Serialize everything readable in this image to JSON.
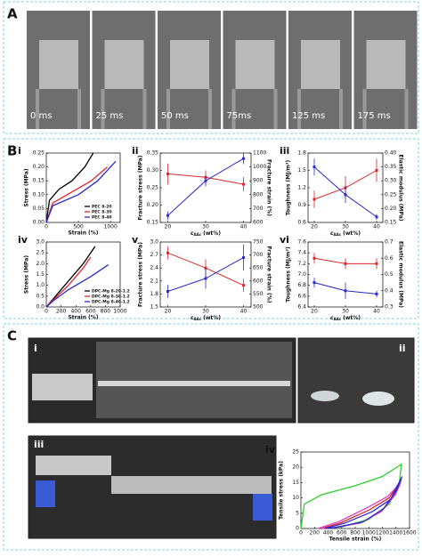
{
  "panels": {
    "a": "A",
    "b": "B",
    "c": "C"
  },
  "frames": [
    "0 ms",
    "25 ms",
    "50 ms",
    "75ms",
    "125 ms",
    "175 ms"
  ],
  "photo_labels": [
    "i",
    "ii",
    "iii"
  ],
  "chart_data": [
    {
      "type": "line",
      "panel_label": "i",
      "xlabel": "Strain (%)",
      "ylabel": "Stress (MPa)",
      "xlim": [
        0,
        1150
      ],
      "xticks": [
        0,
        500,
        1000
      ],
      "ylim": [
        0,
        0.25
      ],
      "yticks": [
        {
          "value": 0,
          "label": "0.00"
        },
        0.05,
        {
          "value": 0.1,
          "label": "0.10"
        },
        0.15,
        {
          "value": 0.2,
          "label": "0.20"
        },
        0.25
      ],
      "legend": "lower right",
      "series": [
        {
          "name": "PEC 8-20",
          "color": "#000000",
          "x": [
            0,
            50,
            200,
            400,
            600,
            730
          ],
          "values": [
            0,
            0.08,
            0.12,
            0.15,
            0.2,
            0.25
          ]
        },
        {
          "name": "PEC 8-30",
          "color": "#e0262b",
          "x": [
            0,
            100,
            400,
            700,
            950
          ],
          "values": [
            0,
            0.07,
            0.11,
            0.15,
            0.2
          ]
        },
        {
          "name": "PEC 8-40",
          "color": "#2a2ad0",
          "x": [
            0,
            100,
            500,
            800,
            1080
          ],
          "values": [
            0,
            0.06,
            0.1,
            0.15,
            0.22
          ]
        }
      ]
    },
    {
      "type": "dual",
      "panel_label": "ii",
      "xlabel_symbol": "c",
      "xlabel_subscript": "AAc",
      "xlabel_unit": "(wt%)",
      "ylabel": "Fracture stress (MPa)",
      "y2label": "Fracture strain (%)",
      "x": [
        20,
        30,
        40
      ],
      "xlim": [
        18,
        42
      ],
      "xticks": [
        20,
        30,
        40
      ],
      "ylim": [
        0.15,
        0.35
      ],
      "yticks": [
        0.15,
        {
          "value": 0.2,
          "label": "0.20"
        },
        0.25,
        {
          "value": 0.3,
          "label": "0.30"
        },
        0.35
      ],
      "y2lim": [
        600,
        1100
      ],
      "y2ticks": [
        600,
        700,
        800,
        900,
        1000,
        1100
      ],
      "series": [
        {
          "color": "#e0262b",
          "values": [
            0.29,
            0.28,
            0.26
          ],
          "errors": [
            0.03,
            0.02,
            0.02
          ]
        },
        {
          "color": "#2a2ad0",
          "axis": "y2",
          "values": [
            650,
            900,
            1060
          ],
          "errors": [
            30,
            40,
            40
          ]
        }
      ]
    },
    {
      "type": "dual",
      "panel_label": "iii",
      "xlabel_symbol": "c",
      "xlabel_subscript": "AAc",
      "xlabel_unit": "(wt%)",
      "ylabel": "Toughness (MJ/m³)",
      "y2label": "Elastic modulus (MPa)",
      "x": [
        20,
        30,
        40
      ],
      "xlim": [
        18,
        42
      ],
      "xticks": [
        20,
        30,
        40
      ],
      "ylim": [
        0.6,
        1.8
      ],
      "yticks": [
        0.6,
        0.9,
        1.2,
        1.5,
        1.8
      ],
      "y2lim": [
        0.15,
        0.4
      ],
      "y2ticks": [
        0.15,
        {
          "value": 0.2,
          "label": "0.20"
        },
        0.25,
        {
          "value": 0.3,
          "label": "0.30"
        },
        0.35,
        {
          "value": 0.4,
          "label": "0.40"
        }
      ],
      "series": [
        {
          "color": "#e0262b",
          "values": [
            1.0,
            1.2,
            1.5
          ],
          "errors": [
            0.15,
            0.2,
            0.2
          ]
        },
        {
          "color": "#2a2ad0",
          "axis": "y2",
          "values": [
            0.35,
            0.25,
            0.17
          ],
          "errors": [
            0.03,
            0.03,
            0.01
          ]
        }
      ]
    },
    {
      "type": "line",
      "panel_label": "iv",
      "xlabel": "Strain (%)",
      "ylabel": "Stress (MPa)",
      "xlim": [
        0,
        1000
      ],
      "xticks": [
        0,
        200,
        400,
        600,
        800,
        1000
      ],
      "ylim": [
        0,
        3
      ],
      "yticks": [
        {
          "value": 0,
          "label": "0.0"
        },
        0.5,
        {
          "value": 1,
          "label": "1.0"
        },
        1.5,
        {
          "value": 2,
          "label": "2.0"
        },
        2.5,
        {
          "value": 3,
          "label": "3.0"
        }
      ],
      "legend": "lower right",
      "series": [
        {
          "name": "DPC-Mg 8-20-1.2",
          "color": "#000000",
          "x": [
            0,
            100,
            300,
            500,
            660
          ],
          "values": [
            0,
            0.4,
            1.2,
            2.0,
            2.8
          ]
        },
        {
          "name": "DPC-Mg 8-30-1.2",
          "color": "#e0262b",
          "x": [
            0,
            100,
            300,
            500,
            600
          ],
          "values": [
            0,
            0.35,
            1.0,
            1.8,
            2.3
          ]
        },
        {
          "name": "DPC-Mg 8-40-1.2",
          "color": "#2a2ad0",
          "x": [
            0,
            100,
            300,
            600,
            840
          ],
          "values": [
            0,
            0.3,
            0.8,
            1.4,
            1.95
          ]
        }
      ]
    },
    {
      "type": "dual",
      "panel_label": "v",
      "xlabel_symbol": "c",
      "xlabel_subscript": "AAc",
      "xlabel_unit": "(wt%)",
      "ylabel": "Fracture stress (MPa)",
      "y2label": "Fracture strain (%)",
      "x": [
        20,
        30,
        40
      ],
      "xlim": [
        18,
        42
      ],
      "xticks": [
        20,
        30,
        40
      ],
      "ylim": [
        1.5,
        3
      ],
      "yticks": [
        1.5,
        1.8,
        2.1,
        2.4,
        2.7,
        {
          "value": 3,
          "label": "3.0"
        }
      ],
      "y2lim": [
        500,
        750
      ],
      "y2ticks": [
        500,
        550,
        600,
        650,
        700,
        750
      ],
      "series": [
        {
          "color": "#e0262b",
          "values": [
            2.75,
            2.4,
            2.0
          ],
          "errors": [
            0.15,
            0.2,
            0.15
          ]
        },
        {
          "color": "#2a2ad0",
          "axis": "y2",
          "values": [
            560,
            610,
            690
          ],
          "errors": [
            25,
            40,
            50
          ]
        }
      ]
    },
    {
      "type": "dual",
      "panel_label": "vi",
      "xlabel_symbol": "c",
      "xlabel_subscript": "AAc",
      "xlabel_unit": "(wt%)",
      "ylabel": "Toughness (MJ/m³)",
      "y2label": "Elastic modulus (MPa)",
      "x": [
        20,
        30,
        40
      ],
      "xlim": [
        18,
        42
      ],
      "xticks": [
        20,
        30,
        40
      ],
      "ylim": [
        6.4,
        7.6
      ],
      "yticks": [
        6.4,
        6.6,
        6.8,
        {
          "value": 7,
          "label": "7.0"
        },
        7.2,
        7.4,
        7.6
      ],
      "y2lim": [
        0.3,
        0.7
      ],
      "y2ticks": [
        0.3,
        0.4,
        0.5,
        0.6,
        0.7
      ],
      "series": [
        {
          "color": "#e0262b",
          "values": [
            7.3,
            7.2,
            7.2
          ],
          "errors": [
            0.1,
            0.1,
            0.1
          ]
        },
        {
          "color": "#2a2ad0",
          "axis": "y2",
          "values": [
            0.45,
            0.4,
            0.38
          ],
          "errors": [
            0.03,
            0.05,
            0.02
          ]
        }
      ]
    },
    {
      "type": "line",
      "panel_label": "iv",
      "xlabel": "Tensile strain (%)",
      "ylabel": "Tensile stress (kPa)",
      "xlim": [
        0,
        1600
      ],
      "xticks": [
        0,
        200,
        400,
        600,
        800,
        1000,
        1200,
        1400,
        1600
      ],
      "ylim": [
        0,
        25
      ],
      "yticks": [
        0,
        5,
        10,
        15,
        20,
        25
      ],
      "series": [
        {
          "color": "#2bd02b",
          "x": [
            0,
            50,
            300,
            800,
            1200,
            1480,
            1450,
            1300,
            1000,
            600,
            300
          ],
          "values": [
            0,
            8,
            11,
            14,
            17,
            21,
            15,
            8,
            3,
            0.5,
            0
          ]
        },
        {
          "color": "#e0262b",
          "x": [
            300,
            600,
            1000,
            1300,
            1480,
            1400,
            1200,
            900,
            500,
            350
          ],
          "values": [
            0,
            2,
            6,
            10,
            16,
            12,
            6,
            2,
            0.3,
            0
          ]
        },
        {
          "color": "#e040c0",
          "x": [
            250,
            550,
            950,
            1280,
            1470,
            1390,
            1180,
            880,
            480,
            300
          ],
          "values": [
            0,
            2.2,
            6.5,
            10.5,
            15,
            11,
            5.5,
            1.8,
            0.3,
            0
          ]
        },
        {
          "color": "#2a2ad0",
          "x": [
            350,
            650,
            1050,
            1320,
            1490,
            1410,
            1220,
            920,
            520,
            380
          ],
          "values": [
            0,
            1.8,
            5.5,
            9.5,
            17,
            12.5,
            6.5,
            2.2,
            0.4,
            0
          ]
        }
      ]
    }
  ]
}
